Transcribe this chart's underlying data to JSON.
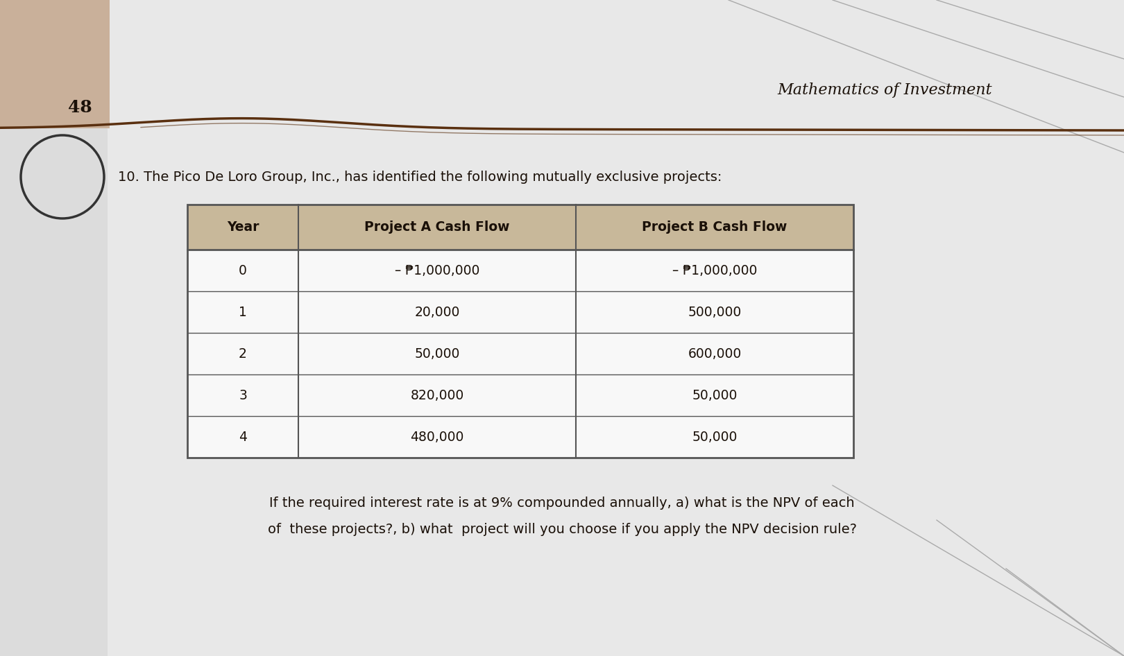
{
  "page_number": "48",
  "header_title": "Mathematics of Investment",
  "problem_text": "10. The Pico De Loro Group, Inc., has identified the following mutually exclusive projects:",
  "table_headers": [
    "Year",
    "Project A Cash Flow",
    "Project B Cash Flow"
  ],
  "table_rows": [
    [
      "0",
      "– ₱1,000,000",
      "– ₱1,000,000"
    ],
    [
      "1",
      "20,000",
      "500,000"
    ],
    [
      "2",
      "50,000",
      "600,000"
    ],
    [
      "3",
      "820,000",
      "50,000"
    ],
    [
      "4",
      "480,000",
      "50,000"
    ]
  ],
  "footer_text_line1": "If the required interest rate is at 9% compounded annually, a) what is the NPV of each",
  "footer_text_line2": "of  these projects?, b) what  project will you choose if you apply the NPV decision rule?",
  "bg_color": "#dcdcdc",
  "page_color": "#e8e8e8",
  "tan_block_color": "#c9b09a",
  "table_header_bg": "#c8b89a",
  "table_body_bg": "#f8f8f8",
  "table_border_color": "#555555",
  "text_color": "#1a1008",
  "separator_color": "#5a3010",
  "font_size_header": 16,
  "font_size_problem": 14,
  "font_size_table_header": 13.5,
  "font_size_table_body": 13.5,
  "font_size_footer": 14,
  "font_size_page_num": 18
}
